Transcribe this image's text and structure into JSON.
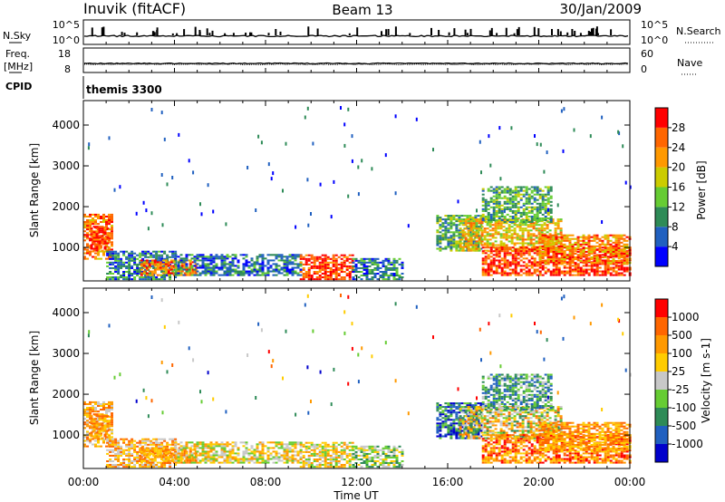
{
  "header": {
    "station": "Inuvik (fitACF)",
    "beam": "Beam 13",
    "date": "30/Jan/2009"
  },
  "panels": {
    "nsky": {
      "left_label": "N.Sky",
      "left_ticks": [
        "10^5",
        "10^0"
      ],
      "right_label": "N.Search",
      "right_ticks": [
        "10^5",
        "10^0"
      ]
    },
    "freq": {
      "left_label_1": "Freq.",
      "left_label_2": "[MHz]",
      "left_ticks": [
        "18",
        "8"
      ],
      "right_label": "Nave",
      "right_ticks": [
        "60",
        "0"
      ]
    },
    "cpid": {
      "label": "CPID",
      "value": "themis 3300"
    }
  },
  "colors": {
    "power_scale": [
      "#0000ff",
      "#2060c0",
      "#2e8b57",
      "#66cc33",
      "#cccc00",
      "#ff9900",
      "#ff6600",
      "#ff0000"
    ],
    "velocity_scale": [
      "#0000cc",
      "#2060c0",
      "#2e8b57",
      "#66cc33",
      "#c8c8c8",
      "#ffcc00",
      "#ff9900",
      "#ff6600",
      "#ff0000"
    ]
  },
  "chart_data": [
    {
      "type": "heatmap",
      "title": "Power",
      "xlabel": "Time UT",
      "ylabel": "Slant Range [km]",
      "xlim": [
        "00:00",
        "24:00"
      ],
      "ylim": [
        180,
        4600
      ],
      "x_ticks": [
        "00:00",
        "04:00",
        "08:00",
        "12:00",
        "16:00",
        "20:00",
        "00:00"
      ],
      "y_ticks": [
        1000,
        2000,
        3000,
        4000
      ],
      "colorbar": {
        "label": "Power [dB]",
        "ticks": [
          "4",
          "8",
          "12",
          "16",
          "20",
          "24",
          "28"
        ]
      }
    },
    {
      "type": "heatmap",
      "title": "Velocity",
      "xlabel": "Time UT",
      "ylabel": "Slant Range [km]",
      "xlim": [
        "00:00",
        "24:00"
      ],
      "ylim": [
        180,
        4600
      ],
      "x_ticks": [
        "00:00",
        "04:00",
        "08:00",
        "12:00",
        "16:00",
        "20:00",
        "00:00"
      ],
      "y_ticks": [
        1000,
        2000,
        3000,
        4000
      ],
      "colorbar": {
        "label": "Velocity [m s-1]",
        "ticks": [
          "1000",
          "500",
          "100",
          "25",
          "-25",
          "-100",
          "-500",
          "-1000"
        ]
      }
    }
  ]
}
